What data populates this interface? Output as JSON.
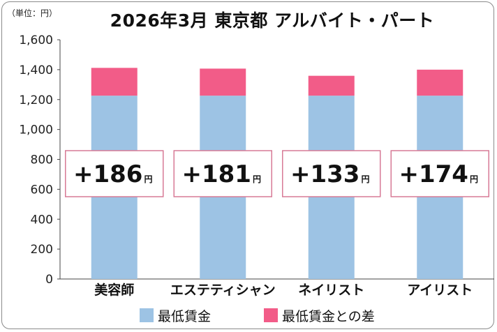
{
  "unit_label": "（単位：円）",
  "title": "2026年3月 東京都 アルバイト・パート",
  "colors": {
    "base": "#9dc3e4",
    "diff": "#f25c88",
    "callout_border": "#d77a96"
  },
  "chart_data": {
    "type": "bar",
    "stacked": true,
    "categories": [
      "美容師",
      "エステティシャン",
      "ネイリスト",
      "アイリスト"
    ],
    "series": [
      {
        "name": "最低賃金",
        "values": [
          1226,
          1226,
          1226,
          1226
        ]
      },
      {
        "name": "最低賃金との差",
        "values": [
          186,
          181,
          133,
          174
        ]
      }
    ],
    "ylim": [
      0,
      1600
    ],
    "yticks": [
      "0",
      "200",
      "400",
      "600",
      "800",
      "1,000",
      "1,200",
      "1,400",
      "1,600"
    ],
    "annotations": [
      {
        "sign": "+",
        "value": "186",
        "unit": "円"
      },
      {
        "sign": "+",
        "value": "181",
        "unit": "円"
      },
      {
        "sign": "+",
        "value": "133",
        "unit": "円"
      },
      {
        "sign": "+",
        "value": "174",
        "unit": "円"
      }
    ],
    "grid": false,
    "legend_position": "bottom"
  }
}
